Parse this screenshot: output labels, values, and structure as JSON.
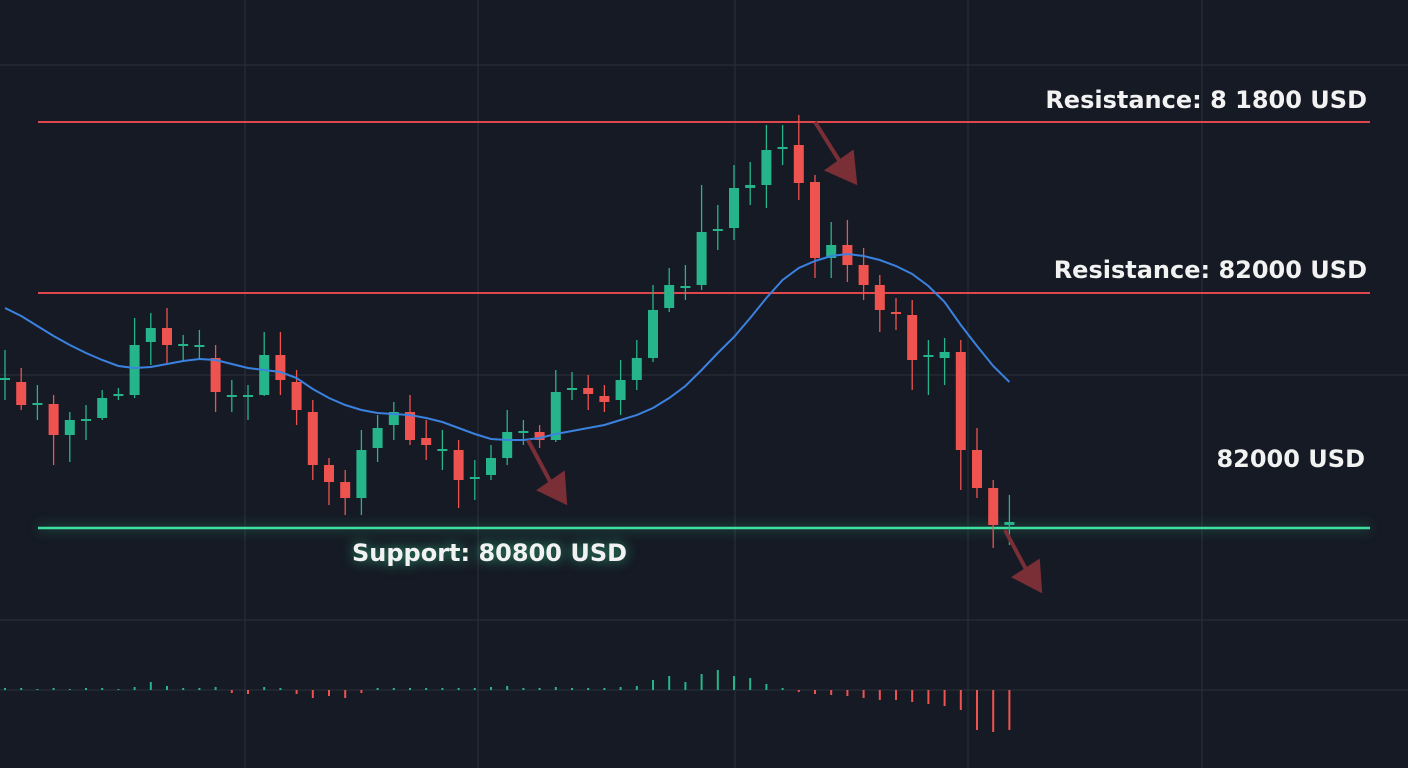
{
  "chart_data": {
    "type": "candlestick",
    "annotations": [
      "Resistance: 8 1800 USD",
      "Resistance: 82000 USD",
      "82000 USD",
      "Support: 80800 USD"
    ],
    "up_color": "#26b58a",
    "down_color": "#ef5350",
    "ylim": [
      80340,
      83440
    ],
    "open": [
      81540,
      81530,
      81420,
      81420,
      81265,
      81340,
      81350,
      81460,
      81465,
      81730,
      81800,
      81715,
      81710,
      81650,
      81460,
      81460,
      81465,
      81665,
      81530,
      81380,
      81115,
      81030,
      80950,
      81200,
      81315,
      81380,
      81250,
      81190,
      81190,
      81050,
      81065,
      81150,
      81280,
      81280,
      81240,
      81495,
      81500,
      81460,
      81440,
      81540,
      81650,
      81900,
      82005,
      82015,
      82290,
      82300,
      82500,
      82515,
      82700,
      82715,
      82530,
      82150,
      82215,
      82115,
      82015,
      81880,
      81865,
      81660,
      81650,
      81680,
      81190,
      81000,
      80815
    ],
    "high": [
      81690,
      81600,
      81515,
      81465,
      81380,
      81415,
      81490,
      81500,
      81850,
      81875,
      81900,
      81765,
      81790,
      81715,
      81540,
      81515,
      81780,
      81780,
      81590,
      81440,
      81150,
      81090,
      81290,
      81365,
      81430,
      81465,
      81340,
      81290,
      81240,
      81140,
      81215,
      81390,
      81340,
      81315,
      81590,
      81580,
      81565,
      81515,
      81640,
      81740,
      82015,
      82100,
      82115,
      82515,
      82415,
      82615,
      82630,
      82815,
      82815,
      82865,
      82565,
      82330,
      82340,
      82200,
      82065,
      81950,
      81940,
      81740,
      81750,
      81740,
      81300,
      81040,
      80965
    ],
    "low": [
      81440,
      81390,
      81340,
      81115,
      81130,
      81240,
      81340,
      81440,
      81450,
      81615,
      81615,
      81640,
      81640,
      81380,
      81380,
      81340,
      81460,
      81465,
      81315,
      81040,
      80915,
      80865,
      80865,
      81130,
      81240,
      81215,
      81140,
      81090,
      80900,
      80940,
      81040,
      81115,
      81215,
      81200,
      81230,
      81440,
      81390,
      81380,
      81365,
      81490,
      81630,
      81880,
      81940,
      81990,
      82190,
      82240,
      82415,
      82400,
      82615,
      82440,
      82050,
      82050,
      82030,
      81940,
      81780,
      81790,
      81490,
      81465,
      81515,
      80990,
      80950,
      80700,
      80715
    ],
    "close": [
      81550,
      81415,
      81425,
      81265,
      81340,
      81345,
      81450,
      81470,
      81715,
      81800,
      81715,
      81720,
      81715,
      81480,
      81465,
      81465,
      81665,
      81540,
      81390,
      81115,
      81030,
      80950,
      81190,
      81300,
      81380,
      81240,
      81215,
      81195,
      81040,
      81055,
      81150,
      81280,
      81285,
      81240,
      81480,
      81500,
      81470,
      81430,
      81540,
      81650,
      81890,
      82015,
      82010,
      82280,
      82295,
      82500,
      82515,
      82690,
      82705,
      82525,
      82150,
      82215,
      82115,
      82015,
      81890,
      81875,
      81640,
      81665,
      81680,
      81190,
      81000,
      80815,
      80830
    ],
    "moving_average": {
      "color": "#3b82e0",
      "values": [
        81900,
        81860,
        81810,
        81760,
        81715,
        81675,
        81640,
        81610,
        81600,
        81605,
        81620,
        81635,
        81645,
        81640,
        81620,
        81600,
        81590,
        81580,
        81550,
        81495,
        81450,
        81415,
        81390,
        81375,
        81370,
        81365,
        81350,
        81330,
        81300,
        81270,
        81245,
        81240,
        81240,
        81250,
        81270,
        81285,
        81300,
        81315,
        81340,
        81365,
        81400,
        81450,
        81510,
        81590,
        81675,
        81755,
        81850,
        81950,
        82040,
        82100,
        82135,
        82160,
        82170,
        82160,
        82140,
        82110,
        82070,
        82010,
        81930,
        81815,
        81710,
        81610,
        81530
      ]
    },
    "volume": [
      2,
      2,
      1,
      2,
      1,
      2,
      2,
      1,
      3,
      8,
      4,
      2,
      2,
      3,
      -3,
      -4,
      3,
      2,
      -4,
      -8,
      -6,
      -8,
      -3,
      2,
      2,
      2,
      2,
      2,
      2,
      2,
      3,
      4,
      2,
      2,
      3,
      2,
      2,
      2,
      3,
      4,
      10,
      14,
      8,
      16,
      20,
      14,
      12,
      6,
      2,
      -2,
      -4,
      -5,
      -6,
      -8,
      -10,
      -10,
      -12,
      -14,
      -16,
      -20,
      -40,
      -42,
      -40
    ],
    "volume_ylim": [
      -50,
      50
    ]
  }
}
